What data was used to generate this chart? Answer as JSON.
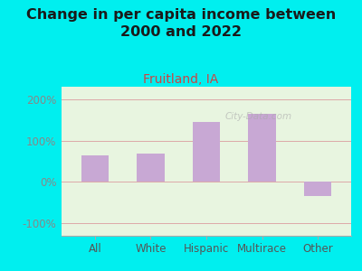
{
  "title": "Change in per capita income between\n2000 and 2022",
  "subtitle": "Fruitland, IA",
  "categories": [
    "All",
    "White",
    "Hispanic",
    "Multirace",
    "Other"
  ],
  "values": [
    65,
    68,
    145,
    165,
    -35
  ],
  "bar_color": "#c8a8d4",
  "background_outer": "#00efef",
  "background_inner": "#e8f5e0",
  "title_color": "#1a1a1a",
  "subtitle_color": "#cc4444",
  "axis_label_color": "#555555",
  "ytick_color": "#888888",
  "grid_color": "#dda8a8",
  "ylim": [
    -130,
    230
  ],
  "yticks": [
    -100,
    0,
    100,
    200
  ],
  "ytick_labels": [
    "-100%",
    "0%",
    "100%",
    "200%"
  ],
  "watermark": "City-Data.com",
  "title_fontsize": 11.5,
  "subtitle_fontsize": 10,
  "bar_width": 0.5
}
